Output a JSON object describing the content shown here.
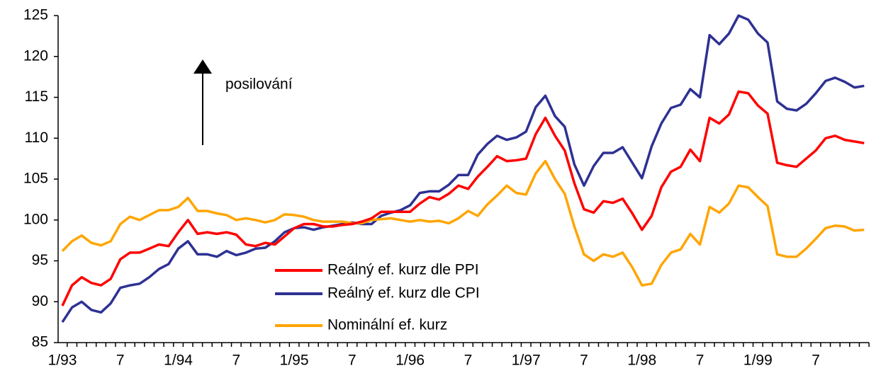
{
  "chart_data": {
    "type": "line",
    "annotation": "posilování",
    "categories": [
      "1/93",
      null,
      null,
      null,
      null,
      null,
      "7",
      null,
      null,
      null,
      null,
      null,
      "1/94",
      null,
      null,
      null,
      null,
      null,
      "7",
      null,
      null,
      null,
      null,
      null,
      "1/95",
      null,
      null,
      null,
      null,
      null,
      "7",
      null,
      null,
      null,
      null,
      null,
      "1/96",
      null,
      null,
      null,
      null,
      null,
      "7",
      null,
      null,
      null,
      null,
      null,
      "1/97",
      null,
      null,
      null,
      null,
      null,
      "7",
      null,
      null,
      null,
      null,
      null,
      "1/98",
      null,
      null,
      null,
      null,
      null,
      "7",
      null,
      null,
      null,
      null,
      null,
      "1/99",
      null,
      null,
      null,
      null,
      null,
      "7",
      null,
      null,
      null,
      null,
      null
    ],
    "series": [
      {
        "name": "Reálný ef. kurz dle PPI",
        "color": "#ff0000",
        "values": [
          89.5,
          92,
          93,
          92.3,
          92,
          92.8,
          95.2,
          96,
          96,
          96.5,
          97,
          96.8,
          98.5,
          100,
          98.3,
          98.5,
          98.3,
          98.5,
          98.2,
          97,
          96.8,
          97.2,
          97,
          98,
          99,
          99.5,
          99.5,
          99.2,
          99.2,
          99.4,
          99.5,
          99.8,
          100.2,
          101,
          101,
          101,
          101,
          102,
          102.8,
          102.5,
          103.2,
          104.2,
          103.8,
          105.3,
          106.5,
          107.8,
          107.2,
          107.3,
          107.5,
          110.5,
          112.5,
          110.3,
          108.5,
          104.5,
          101.3,
          100.9,
          102.3,
          102.1,
          102.6,
          100.8,
          98.8,
          100.5,
          104,
          105.9,
          106.5,
          108.6,
          107.2,
          112.5,
          111.8,
          112.9,
          115.7,
          115.5,
          114,
          113,
          107,
          106.7,
          106.5,
          107.5,
          108.5,
          110,
          110.3,
          109.8,
          109.6,
          109.4
        ]
      },
      {
        "name": "Reálný ef. kurz dle CPI",
        "color": "#2e3192",
        "values": [
          87.5,
          89.3,
          90,
          89,
          88.7,
          89.8,
          91.7,
          92,
          92.2,
          93,
          94,
          94.6,
          96.5,
          97.4,
          95.8,
          95.8,
          95.5,
          96.2,
          95.7,
          96,
          96.5,
          96.6,
          97.4,
          98.5,
          99,
          99.1,
          98.8,
          99.1,
          99.3,
          99.5,
          99.7,
          99.5,
          99.5,
          100.5,
          100.9,
          101.2,
          101.8,
          103.3,
          103.5,
          103.5,
          104.3,
          105.5,
          105.5,
          108,
          109.3,
          110.3,
          109.8,
          110.1,
          110.8,
          113.8,
          115.2,
          112.7,
          111.4,
          106.8,
          104.2,
          106.6,
          108.2,
          108.2,
          108.9,
          107,
          105.1,
          109,
          111.8,
          113.7,
          114.1,
          116,
          115,
          122.6,
          121.5,
          122.8,
          125,
          124.5,
          122.8,
          121.7,
          114.5,
          113.6,
          113.4,
          114.2,
          115.5,
          117,
          117.4,
          116.9,
          116.2,
          116.4
        ]
      },
      {
        "name": "Nominální ef. kurz",
        "color": "#ffa500",
        "values": [
          96.2,
          97.4,
          98.1,
          97.2,
          96.9,
          97.4,
          99.5,
          100.4,
          100,
          100.6,
          101.2,
          101.2,
          101.6,
          102.7,
          101.1,
          101.1,
          100.8,
          100.6,
          100,
          100.2,
          100,
          99.7,
          100,
          100.7,
          100.6,
          100.4,
          100,
          99.8,
          99.8,
          99.8,
          99.6,
          99.6,
          100,
          100.1,
          100.2,
          100,
          99.8,
          100,
          99.8,
          99.9,
          99.6,
          100.2,
          101.1,
          100.5,
          101.9,
          103,
          104.2,
          103.3,
          103.1,
          105.7,
          107.2,
          105,
          103.2,
          99.2,
          95.8,
          95,
          95.8,
          95.5,
          96,
          94.2,
          92,
          92.2,
          94.5,
          96,
          96.4,
          98.3,
          97,
          101.6,
          100.9,
          102,
          104.2,
          104,
          102.8,
          101.7,
          95.8,
          95.5,
          95.5,
          96.5,
          97.7,
          99,
          99.3,
          99.2,
          98.7,
          98.8
        ]
      }
    ],
    "ylim": [
      85,
      125
    ],
    "yticks": [
      85,
      90,
      95,
      100,
      105,
      110,
      115,
      120,
      125
    ]
  }
}
